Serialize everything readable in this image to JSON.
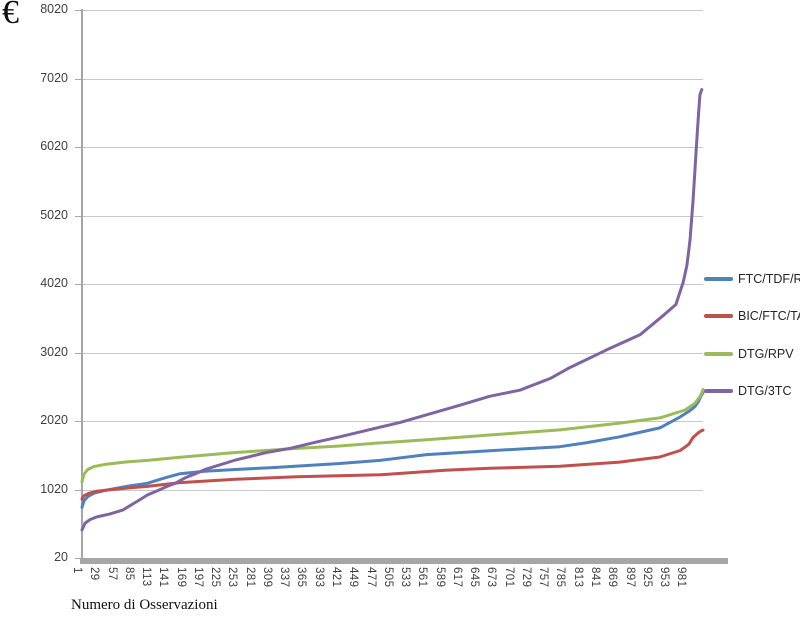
{
  "chart_data": {
    "type": "line",
    "title": "",
    "ylabel": "€",
    "xlabel": "Numero di Osservazioni",
    "grid": true,
    "legend_position": "right",
    "x_min": 1,
    "x_max": 1008,
    "ylim": [
      20,
      8020
    ],
    "y_tick_values": [
      8020,
      7020,
      6020,
      5020,
      4020,
      3020,
      2020,
      1020,
      20
    ],
    "y_tick_labels": [
      "8020",
      "7020",
      "6020",
      "5020",
      "4020",
      "3020",
      "2020",
      "1020",
      "20"
    ],
    "x_tick_step": 28,
    "x_tick_labels": [
      "1",
      "29",
      "57",
      "85",
      "113",
      "141",
      "169",
      "197",
      "225",
      "253",
      "281",
      "309",
      "337",
      "365",
      "393",
      "421",
      "449",
      "477",
      "505",
      "533",
      "561",
      "589",
      "617",
      "645",
      "673",
      "701",
      "729",
      "757",
      "785",
      "813",
      "841",
      "869",
      "897",
      "925",
      "953",
      "981"
    ],
    "series": [
      {
        "name": "FTC/TDF/RPV",
        "color": "#4F81BD",
        "points": [
          [
            1,
            760
          ],
          [
            4,
            850
          ],
          [
            10,
            915
          ],
          [
            20,
            965
          ],
          [
            35,
            1000
          ],
          [
            55,
            1035
          ],
          [
            80,
            1075
          ],
          [
            107,
            1110
          ],
          [
            135,
            1190
          ],
          [
            160,
            1250
          ],
          [
            200,
            1285
          ],
          [
            250,
            1312
          ],
          [
            310,
            1340
          ],
          [
            419,
            1400
          ],
          [
            484,
            1445
          ],
          [
            560,
            1530
          ],
          [
            662,
            1585
          ],
          [
            776,
            1645
          ],
          [
            820,
            1705
          ],
          [
            873,
            1790
          ],
          [
            938,
            1920
          ],
          [
            971,
            2080
          ],
          [
            985,
            2160
          ],
          [
            995,
            2230
          ],
          [
            1001,
            2310
          ],
          [
            1005,
            2390
          ],
          [
            1008,
            2430
          ]
        ]
      },
      {
        "name": "BIC/FTC/TAF",
        "color": "#C0504D",
        "points": [
          [
            1,
            880
          ],
          [
            4,
            930
          ],
          [
            12,
            965
          ],
          [
            25,
            995
          ],
          [
            50,
            1020
          ],
          [
            80,
            1045
          ],
          [
            107,
            1065
          ],
          [
            160,
            1120
          ],
          [
            250,
            1170
          ],
          [
            350,
            1205
          ],
          [
            484,
            1235
          ],
          [
            590,
            1300
          ],
          [
            662,
            1330
          ],
          [
            776,
            1360
          ],
          [
            873,
            1420
          ],
          [
            938,
            1495
          ],
          [
            971,
            1590
          ],
          [
            985,
            1680
          ],
          [
            992,
            1780
          ],
          [
            1000,
            1845
          ],
          [
            1005,
            1875
          ],
          [
            1008,
            1885
          ]
        ]
      },
      {
        "name": "DTG/RPV",
        "color": "#9BBB59",
        "points": [
          [
            1,
            1130
          ],
          [
            4,
            1240
          ],
          [
            10,
            1310
          ],
          [
            20,
            1355
          ],
          [
            40,
            1390
          ],
          [
            70,
            1420
          ],
          [
            107,
            1445
          ],
          [
            160,
            1490
          ],
          [
            250,
            1560
          ],
          [
            350,
            1620
          ],
          [
            419,
            1655
          ],
          [
            484,
            1700
          ],
          [
            560,
            1745
          ],
          [
            662,
            1815
          ],
          [
            776,
            1890
          ],
          [
            873,
            1990
          ],
          [
            938,
            2065
          ],
          [
            979,
            2180
          ],
          [
            995,
            2280
          ],
          [
            1002,
            2360
          ],
          [
            1006,
            2430
          ],
          [
            1008,
            2480
          ]
        ]
      },
      {
        "name": "DTG/3TC",
        "color": "#8064A2",
        "points": [
          [
            1,
            430
          ],
          [
            6,
            530
          ],
          [
            14,
            580
          ],
          [
            25,
            620
          ],
          [
            45,
            660
          ],
          [
            67,
            720
          ],
          [
            90,
            845
          ],
          [
            107,
            940
          ],
          [
            125,
            1010
          ],
          [
            140,
            1070
          ],
          [
            152,
            1110
          ],
          [
            168,
            1190
          ],
          [
            185,
            1250
          ],
          [
            200,
            1310
          ],
          [
            250,
            1450
          ],
          [
            300,
            1560
          ],
          [
            338,
            1620
          ],
          [
            380,
            1710
          ],
          [
            419,
            1790
          ],
          [
            484,
            1930
          ],
          [
            517,
            2000
          ],
          [
            614,
            2250
          ],
          [
            662,
            2380
          ],
          [
            711,
            2470
          ],
          [
            760,
            2640
          ],
          [
            792,
            2800
          ],
          [
            852,
            3060
          ],
          [
            906,
            3280
          ],
          [
            945,
            3570
          ],
          [
            964,
            3720
          ],
          [
            976,
            4050
          ],
          [
            982,
            4300
          ],
          [
            987,
            4660
          ],
          [
            992,
            5250
          ],
          [
            997,
            5980
          ],
          [
            1000,
            6410
          ],
          [
            1003,
            6780
          ],
          [
            1006,
            6860
          ]
        ]
      }
    ]
  },
  "colors": {
    "axis": "#A6A6A6",
    "grid": "#C8C8C8",
    "tick_text": "#3F3F3F",
    "legend_text": "#262626"
  }
}
